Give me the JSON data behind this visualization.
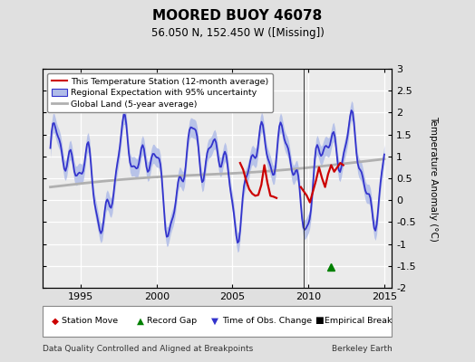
{
  "title": "MOORED BUOY 46078",
  "subtitle": "56.050 N, 152.450 W ([Missing])",
  "ylabel": "Temperature Anomaly (°C)",
  "xlabel_left": "Data Quality Controlled and Aligned at Breakpoints",
  "xlabel_right": "Berkeley Earth",
  "ylim": [
    -2.0,
    3.0
  ],
  "xlim_start": 1992.5,
  "xlim_end": 2015.5,
  "xticks": [
    1995,
    2000,
    2005,
    2010,
    2015
  ],
  "yticks": [
    -2,
    -1.5,
    -1,
    -0.5,
    0,
    0.5,
    1,
    1.5,
    2,
    2.5,
    3
  ],
  "bg_color": "#e0e0e0",
  "plot_bg_color": "#ebebeb",
  "record_gap_x": 2011.5,
  "record_gap_y": -1.52,
  "vertical_line_x": 2009.67
}
